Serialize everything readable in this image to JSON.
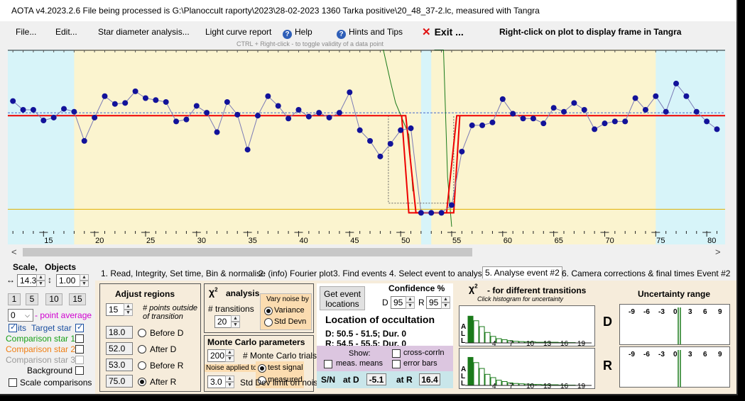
{
  "title": "AOTA v4.2023.2.6    File being processed is G:\\Planoccult raporty\\2023\\28-02-2023 1360 Tarka positive\\20_48_37-2.lc, measured with Tangra",
  "menu": {
    "file": "File...",
    "edit": "Edit...",
    "star_diameter": "Star diameter analysis...",
    "light_curve": "Light curve report",
    "help": "Help",
    "hints": "Hints and Tips",
    "exit": "Exit ...",
    "right_click_hint": "Right-click on plot to display frame in Tangra"
  },
  "ctrl_hint": "CTRL + Right-click  -  to toggle validity of a data point",
  "icons": {
    "help": "question-circle-icon",
    "exit": "red-x-icon"
  },
  "colors": {
    "cyan_band": "#d7f4f9",
    "yellow_band": "#fbf4cf",
    "points": "#12129a",
    "fit": "#ee0000",
    "green_trace": "#1a7a1a",
    "panel": "#f6ecdb",
    "stats": "#c9e6ea",
    "show": "#dcc6e0"
  },
  "axis": {
    "min": 12,
    "max": 81,
    "labels": [
      "15",
      "20",
      "25",
      "30",
      "35",
      "40",
      "45",
      "50",
      "55",
      "60",
      "65",
      "70",
      "75",
      "80"
    ]
  },
  "chart_data": {
    "type": "scatter",
    "x_range": [
      11.5,
      81.8
    ],
    "y_range": [
      -0.15,
      1.65
    ],
    "baseline": 1.0,
    "event_bottom": 0.0,
    "regions": {
      "before_d": [
        18.0,
        52.0
      ],
      "after_r": [
        53.0,
        75.0
      ]
    },
    "fit_d_transition": [
      50.5,
      51.5
    ],
    "fit_r_transition": [
      54.5,
      55.5
    ],
    "x": [
      12,
      13,
      14,
      15,
      16,
      17,
      18,
      19,
      20,
      21,
      22,
      23,
      24,
      25,
      26,
      27,
      28,
      29,
      30,
      31,
      32,
      33,
      34,
      35,
      36,
      37,
      38,
      39,
      40,
      41,
      42,
      43,
      44,
      45,
      46,
      47,
      48,
      49,
      50,
      51,
      52,
      53,
      54,
      55,
      56,
      57,
      58,
      59,
      60,
      61,
      62,
      63,
      64,
      65,
      66,
      67,
      68,
      69,
      70,
      71,
      72,
      73,
      74,
      75,
      76,
      77,
      78,
      79,
      80,
      81
    ],
    "y": [
      1.15,
      1.06,
      1.06,
      0.95,
      0.98,
      1.07,
      1.04,
      0.74,
      0.98,
      1.2,
      1.12,
      1.13,
      1.25,
      1.18,
      1.16,
      1.14,
      0.94,
      0.96,
      1.1,
      1.03,
      0.83,
      1.14,
      1.01,
      0.65,
      1.0,
      1.2,
      1.1,
      0.97,
      1.06,
      0.99,
      1.03,
      0.98,
      1.03,
      1.24,
      0.85,
      0.74,
      0.58,
      0.71,
      0.85,
      0.87,
      0.0,
      0.0,
      0.0,
      0.08,
      0.63,
      0.9,
      0.9,
      0.93,
      1.17,
      1.02,
      0.97,
      0.97,
      0.92,
      1.08,
      1.04,
      1.13,
      1.06,
      0.86,
      0.92,
      0.94,
      0.94,
      1.18,
      1.06,
      1.2,
      1.04,
      1.33,
      1.2,
      1.04,
      0.94,
      0.86
    ]
  },
  "left": {
    "scale_title": "Scale,",
    "objects_title": "Objects",
    "hscale": "14.3",
    "vscale": "1.00",
    "btn1": "1",
    "btn5": "5",
    "btn10": "10",
    "btn15": "15",
    "pavg_value": "0",
    "pavg_label": "- point average",
    "target": "Target star",
    "target_prefix": "its",
    "comp1": "Comparison star 1",
    "comp2": "Comparison star 2",
    "comp3": "Comparison star 3",
    "background": "Background",
    "scale_comp": "Scale comparisons",
    "colors": {
      "target": "#1a4fa0",
      "comp1": "#18a018",
      "comp2": "#f07e12",
      "comp3": "#9a9a9a",
      "background": "#000000"
    }
  },
  "tabs": [
    "1. Read, Integrity, Set time, Bin & normalise",
    "2. (info) Fourier plot",
    "3. Find events",
    "4. Select event to analyse",
    "5. Analyse event #2",
    "6. Camera corrections & final times Event #2"
  ],
  "adjust": {
    "title": "Adjust regions",
    "points_val": "15",
    "points_label1": "# points outside",
    "points_label2": "of transition",
    "before_d_val": "18.0",
    "before_d": "Before D",
    "after_d_val": "52.0",
    "after_d": "After D",
    "before_r_val": "53.0",
    "before_r": "Before R",
    "after_r_val": "75.0",
    "after_r": "After R"
  },
  "chi": {
    "title": "analysis",
    "transitions_label": "# transitions",
    "transitions_val": "20",
    "vary_title1": "Vary noise by",
    "variance": "Variance",
    "std": "Std Devn"
  },
  "mc": {
    "title": "Monte Carlo parameters",
    "trials_val": "200",
    "trials_label": "# Monte Carlo trials",
    "noise_applied": "Noise applied to",
    "test_signal": "test signal",
    "measured": "measured",
    "std_limit_val": "3.0",
    "std_limit_label": "Std Dev limit on noise"
  },
  "event": {
    "get_btn1": "Get event",
    "get_btn2": "locations",
    "confidence": "Confidence %",
    "d_label": "D",
    "d_val": "95",
    "r_label": "R",
    "r_val": "95",
    "loc_title": "Location of occultation",
    "d_line": "D: 50.5 - 51.5; Dur. 0",
    "r_line": "R: 54.5 - 55.5; Dur. 0",
    "show": "Show:",
    "cross_corr": "cross-corrln",
    "meas_means": "meas. means",
    "error_bars": "error bars",
    "sn": "S/N",
    "at_d": "at D",
    "at_d_val": "-5.1",
    "at_r": "at R",
    "at_r_val": "16.4"
  },
  "chi2": {
    "title": "- for different transitions",
    "subtitle": "Click histogram for uncertainty",
    "ticks": [
      "4",
      "7",
      "10",
      "13",
      "16",
      "19"
    ],
    "side_labels": [
      "A",
      "L",
      "L"
    ],
    "d_label": "D",
    "r_label": "R",
    "d_bars": [
      0.82,
      0.68,
      0.5,
      0.32,
      0.2,
      0.13,
      0.1,
      0.07,
      0.05,
      0.04,
      0.03,
      0.03,
      0.02,
      0.02,
      0.02,
      0.02,
      0.01,
      0.01,
      0.01
    ],
    "r_bars": [
      0.86,
      0.7,
      0.52,
      0.34,
      0.24,
      0.16,
      0.12,
      0.08,
      0.06,
      0.05,
      0.04,
      0.03,
      0.03,
      0.02,
      0.02,
      0.02,
      0.01,
      0.01,
      0.01
    ]
  },
  "uncert": {
    "title": "Uncertainty range",
    "ticks": [
      "-9",
      "-6",
      "-3",
      "0",
      "3",
      "6",
      "9"
    ]
  }
}
